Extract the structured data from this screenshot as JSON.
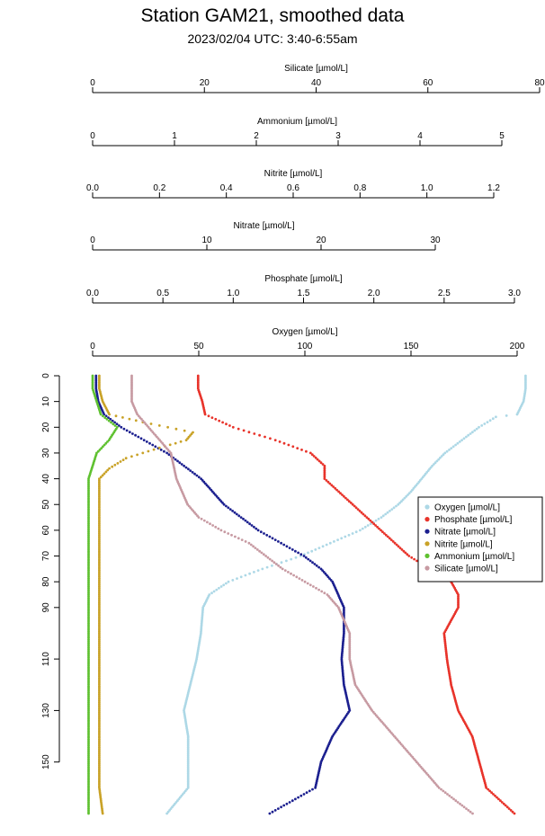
{
  "title": "Station GAM21, smoothed data",
  "subtitle": "2023/02/04 UTC: 3:40-6:55am",
  "chart_data": {
    "type": "scatter",
    "ylabel": "",
    "ylim": [
      0,
      170
    ],
    "y_ticks": [
      "0",
      "10",
      "20",
      "30",
      "40",
      "50",
      "60",
      "70",
      "80",
      "90",
      "110",
      "130",
      "150"
    ],
    "y_tick_values": [
      0,
      10,
      20,
      30,
      40,
      50,
      60,
      70,
      80,
      90,
      110,
      130,
      150
    ],
    "legend_position": "right",
    "axes": [
      {
        "name": "Silicate [µmol/L]",
        "range": [
          0,
          80
        ],
        "ticks": [
          "0",
          "20",
          "40",
          "60",
          "80"
        ],
        "tick_values": [
          0,
          20,
          40,
          60,
          80
        ]
      },
      {
        "name": "Ammonium [µmol/L]",
        "range": [
          0,
          5
        ],
        "ticks": [
          "0",
          "1",
          "2",
          "3",
          "4",
          "5"
        ],
        "tick_values": [
          0,
          1,
          2,
          3,
          4,
          5
        ]
      },
      {
        "name": "Nitrite [µmol/L]",
        "range": [
          0,
          1.2
        ],
        "ticks": [
          "0.0",
          "0.2",
          "0.4",
          "0.6",
          "0.8",
          "1.0",
          "1.2"
        ],
        "tick_values": [
          0,
          0.2,
          0.4,
          0.6,
          0.8,
          1.0,
          1.2
        ]
      },
      {
        "name": "Nitrate [µmol/L]",
        "range": [
          0,
          30
        ],
        "ticks": [
          "0",
          "10",
          "20",
          "30"
        ],
        "tick_values": [
          0,
          10,
          20,
          30
        ]
      },
      {
        "name": "Phosphate [µmol/L]",
        "range": [
          0,
          3
        ],
        "ticks": [
          "0.0",
          "0.5",
          "1.0",
          "1.5",
          "2.0",
          "2.5",
          "3.0"
        ],
        "tick_values": [
          0,
          0.5,
          1.0,
          1.5,
          2.0,
          2.5,
          3.0
        ]
      },
      {
        "name": "Oxygen [µmol/L]",
        "range": [
          0,
          200
        ],
        "ticks": [
          "0",
          "50",
          "100",
          "150",
          "200"
        ],
        "tick_values": [
          0,
          50,
          100,
          150,
          200
        ]
      }
    ],
    "series": [
      {
        "name": "Oxygen [µmol/L]",
        "color": "#add8e6",
        "axis": 5,
        "points": [
          [
            0,
            204
          ],
          [
            5,
            204
          ],
          [
            10,
            203
          ],
          [
            15,
            200
          ],
          [
            16,
            190
          ],
          [
            20,
            182
          ],
          [
            25,
            174
          ],
          [
            30,
            166
          ],
          [
            35,
            160
          ],
          [
            40,
            155
          ],
          [
            45,
            150
          ],
          [
            50,
            144
          ],
          [
            55,
            136
          ],
          [
            60,
            126
          ],
          [
            65,
            112
          ],
          [
            70,
            98
          ],
          [
            75,
            80
          ],
          [
            80,
            64
          ],
          [
            85,
            55
          ],
          [
            90,
            52
          ],
          [
            100,
            51
          ],
          [
            110,
            49
          ],
          [
            120,
            46
          ],
          [
            130,
            43
          ],
          [
            140,
            45
          ],
          [
            150,
            45
          ],
          [
            160,
            45
          ],
          [
            170,
            35
          ]
        ]
      },
      {
        "name": "Phosphate [µmol/L]",
        "color": "#e8332a",
        "axis": 4,
        "points": [
          [
            0,
            0.75
          ],
          [
            5,
            0.75
          ],
          [
            10,
            0.78
          ],
          [
            15,
            0.8
          ],
          [
            20,
            1.0
          ],
          [
            25,
            1.3
          ],
          [
            30,
            1.55
          ],
          [
            35,
            1.65
          ],
          [
            40,
            1.65
          ],
          [
            45,
            1.75
          ],
          [
            50,
            1.85
          ],
          [
            55,
            1.95
          ],
          [
            60,
            2.05
          ],
          [
            65,
            2.15
          ],
          [
            70,
            2.25
          ],
          [
            75,
            2.4
          ],
          [
            80,
            2.55
          ],
          [
            85,
            2.6
          ],
          [
            90,
            2.6
          ],
          [
            100,
            2.5
          ],
          [
            110,
            2.52
          ],
          [
            120,
            2.55
          ],
          [
            130,
            2.6
          ],
          [
            140,
            2.7
          ],
          [
            150,
            2.75
          ],
          [
            160,
            2.8
          ],
          [
            170,
            3.0
          ]
        ]
      },
      {
        "name": "Nitrate [µmol/L]",
        "color": "#1b1f8f",
        "axis": 3,
        "points": [
          [
            0,
            0.3
          ],
          [
            5,
            0.3
          ],
          [
            10,
            0.5
          ],
          [
            15,
            1.0
          ],
          [
            20,
            2.5
          ],
          [
            25,
            4.5
          ],
          [
            30,
            6.5
          ],
          [
            35,
            8.0
          ],
          [
            40,
            9.5
          ],
          [
            45,
            10.5
          ],
          [
            50,
            11.5
          ],
          [
            55,
            13.0
          ],
          [
            60,
            14.5
          ],
          [
            65,
            16.5
          ],
          [
            70,
            18.5
          ],
          [
            75,
            20.0
          ],
          [
            80,
            21.0
          ],
          [
            85,
            21.5
          ],
          [
            90,
            22.0
          ],
          [
            100,
            22.0
          ],
          [
            110,
            21.8
          ],
          [
            120,
            22.0
          ],
          [
            130,
            22.5
          ],
          [
            140,
            21.0
          ],
          [
            150,
            20.0
          ],
          [
            160,
            19.5
          ],
          [
            170,
            15.5
          ]
        ]
      },
      {
        "name": "Nitrite [µmol/L]",
        "color": "#c9a227",
        "axis": 2,
        "points": [
          [
            0,
            0.02
          ],
          [
            5,
            0.02
          ],
          [
            10,
            0.03
          ],
          [
            15,
            0.05
          ],
          [
            18,
            0.15
          ],
          [
            22,
            0.3
          ],
          [
            25,
            0.28
          ],
          [
            28,
            0.2
          ],
          [
            32,
            0.1
          ],
          [
            36,
            0.05
          ],
          [
            40,
            0.02
          ],
          [
            60,
            0.02
          ],
          [
            80,
            0.02
          ],
          [
            100,
            0.02
          ],
          [
            120,
            0.02
          ],
          [
            140,
            0.02
          ],
          [
            160,
            0.02
          ],
          [
            170,
            0.03
          ]
        ]
      },
      {
        "name": "Ammonium [µmol/L]",
        "color": "#5fc130",
        "axis": 1,
        "points": [
          [
            0,
            0.0
          ],
          [
            5,
            0.0
          ],
          [
            10,
            0.05
          ],
          [
            15,
            0.1
          ],
          [
            20,
            0.3
          ],
          [
            25,
            0.2
          ],
          [
            30,
            0.05
          ],
          [
            35,
            0.0
          ],
          [
            40,
            -0.05
          ],
          [
            50,
            -0.05
          ],
          [
            60,
            -0.05
          ],
          [
            70,
            -0.05
          ],
          [
            80,
            -0.05
          ],
          [
            90,
            -0.05
          ],
          [
            100,
            -0.05
          ],
          [
            110,
            -0.05
          ],
          [
            120,
            -0.05
          ],
          [
            130,
            -0.05
          ],
          [
            140,
            -0.05
          ],
          [
            150,
            -0.05
          ],
          [
            160,
            -0.05
          ],
          [
            170,
            -0.05
          ]
        ]
      },
      {
        "name": "Silicate [µmol/L]",
        "color": "#c79aa2",
        "axis": 0,
        "points": [
          [
            0,
            7
          ],
          [
            5,
            7
          ],
          [
            10,
            7
          ],
          [
            15,
            8
          ],
          [
            20,
            10
          ],
          [
            25,
            12
          ],
          [
            30,
            14
          ],
          [
            35,
            14.5
          ],
          [
            40,
            15
          ],
          [
            45,
            16
          ],
          [
            50,
            17
          ],
          [
            55,
            19
          ],
          [
            60,
            23
          ],
          [
            65,
            28
          ],
          [
            70,
            31
          ],
          [
            75,
            34
          ],
          [
            80,
            38
          ],
          [
            85,
            42
          ],
          [
            90,
            44
          ],
          [
            100,
            46
          ],
          [
            110,
            46
          ],
          [
            120,
            47
          ],
          [
            130,
            50
          ],
          [
            140,
            54
          ],
          [
            150,
            58
          ],
          [
            160,
            62
          ],
          [
            170,
            68
          ]
        ]
      }
    ],
    "legend": [
      "Oxygen [µmol/L]",
      "Phosphate [µmol/L]",
      "Nitrate [µmol/L]",
      "Nitrite [µmol/L]",
      "Ammonium [µmol/L]",
      "Silicate [µmol/L]"
    ]
  },
  "colors": {
    "oxygen": "#add8e6",
    "phosphate": "#e8332a",
    "nitrate": "#1b1f8f",
    "nitrite": "#c9a227",
    "ammonium": "#5fc130",
    "silicate": "#c79aa2"
  }
}
